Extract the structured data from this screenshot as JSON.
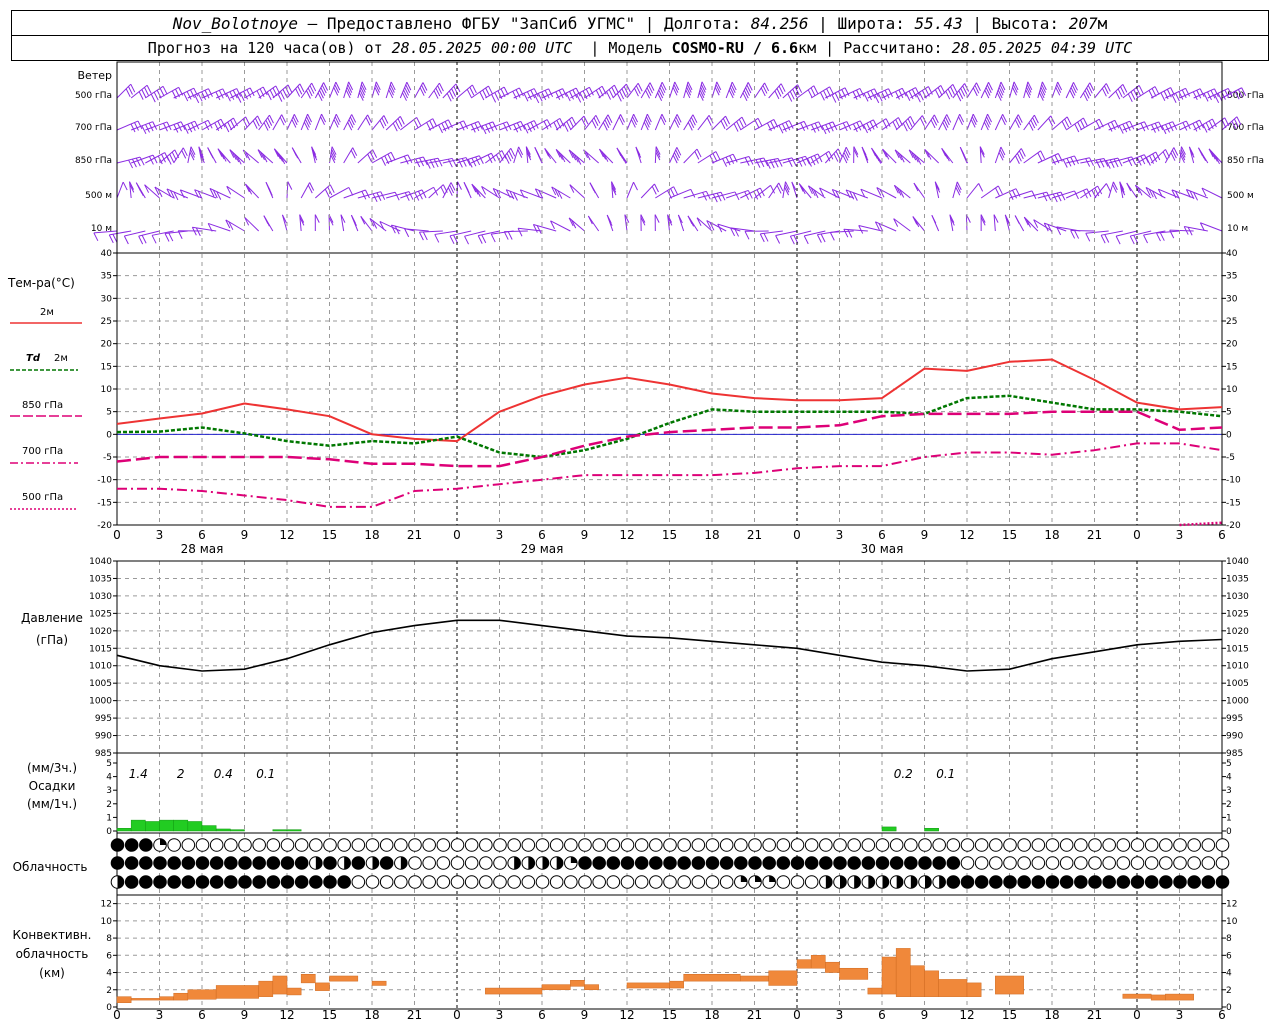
{
  "header": {
    "station": "Nov_Bolotnoye",
    "provider": "Предоставлено ФГБУ \"ЗапСиб УГМС\"",
    "lon_label": "Долгота:",
    "lon": "84.256",
    "lat_label": "Широта:",
    "lat": "55.43",
    "alt_label": "Высота:",
    "alt": "207",
    "alt_unit": "м",
    "forecast_label": "Прогноз на 120 часа(ов) от",
    "forecast_start": "28.05.2025 00:00 UTC",
    "model_label": "Модель",
    "model": "COSMO-RU / 6.6",
    "model_unit": "км",
    "computed_label": "Рассчитано:",
    "computed": "28.05.2025 04:39 UTC"
  },
  "colors": {
    "wind": "#8a2be2",
    "t2m": "#ee3333",
    "td2m": "#007700",
    "t850": "#dd0077",
    "pressure": "#000000",
    "precip": "#22cc22",
    "convective": "#f0883a",
    "zero_line": "#2222cc"
  },
  "wind_panel": {
    "title": "Ветер",
    "levels": [
      "500 гПа",
      "700 гПа",
      "850 гПа",
      "500 м",
      "10   м"
    ],
    "icon": "wind-barb-icon"
  },
  "x_axis": {
    "ticks": [
      "0",
      "3",
      "6",
      "9",
      "12",
      "15",
      "18",
      "21",
      "0",
      "3",
      "6",
      "9",
      "12",
      "15",
      "18",
      "21",
      "0",
      "3",
      "6",
      "9",
      "12",
      "15",
      "18",
      "21",
      "0",
      "3",
      "6"
    ],
    "days": [
      "28 мая",
      "29 мая",
      "30 мая"
    ],
    "convective_ticks": [
      "0",
      "3",
      "6",
      "9",
      "12",
      "15",
      "18",
      "21",
      "0",
      "3",
      "6",
      "9",
      "12",
      "15",
      "18",
      "21",
      "0",
      "3",
      "6",
      "9",
      "12",
      "15",
      "18",
      "21",
      "0",
      "3",
      "6"
    ]
  },
  "legend": {
    "title": "Тем-ра(°C)",
    "t2m": "2м",
    "td_symbol": "Td",
    "td_level": "2м",
    "t850": "850 гПа",
    "t700": "700 гПа",
    "t500": "500 гПа"
  },
  "labels": {
    "pressure": "Давление",
    "pressure_unit": "(гПа)",
    "precip_unit3": "(мм/3ч.)",
    "precip": "Осадки",
    "precip_unit1": "(мм/1ч.)",
    "cloud": "Облачность",
    "conv1": "Конвективн.",
    "conv2": "облачность",
    "conv3": "(км)"
  },
  "chart_data": [
    {
      "type": "line",
      "title": "",
      "ylabel": "Тем-ра(°C)",
      "ylim": [
        -20,
        40
      ],
      "yticks": [
        "40",
        "35",
        "30",
        "25",
        "20",
        "15",
        "10",
        "5",
        "0",
        "-5",
        "-10",
        "-15",
        "-20"
      ],
      "grid": true,
      "x_hours": [
        0,
        3,
        6,
        9,
        12,
        15,
        18,
        21,
        24,
        27,
        30,
        33,
        36,
        39,
        42,
        45,
        48,
        51,
        54,
        57,
        60,
        63,
        66,
        69,
        72,
        75,
        78
      ],
      "series": [
        {
          "name": "2м",
          "values": [
            2.3,
            3.5,
            4.6,
            6.8,
            5.5,
            4,
            0,
            -1,
            -1.5,
            5,
            8.5,
            11,
            12.5,
            11,
            9,
            8,
            7.5,
            7.5,
            8,
            14.5,
            14,
            16,
            16.5,
            12,
            7,
            5.5,
            6
          ]
        },
        {
          "name": "Td 2м",
          "values": [
            0.5,
            0.6,
            1.5,
            0.2,
            -1.5,
            -2.5,
            -1.5,
            -2,
            -0.5,
            -4,
            -5,
            -3.5,
            -1,
            2.5,
            5.5,
            5,
            5,
            5,
            5,
            4.5,
            8,
            8.5,
            7,
            5.5,
            5.5,
            5,
            4
          ]
        },
        {
          "name": "850 гПа",
          "values": [
            -6,
            -5,
            -5,
            -5,
            -5,
            -5.5,
            -6.5,
            -6.5,
            -7,
            -7,
            -5,
            -2.5,
            -0.5,
            0.5,
            1,
            1.5,
            1.5,
            2,
            4,
            4.5,
            4.5,
            4.5,
            5,
            5,
            5,
            1,
            1.5
          ]
        },
        {
          "name": "700 гПа",
          "values": [
            -12,
            -12,
            -12.5,
            -13.5,
            -14.5,
            -16,
            -16,
            -12.5,
            -12,
            -11,
            -10,
            -9,
            -9,
            -9,
            -9,
            -8.5,
            -7.5,
            -7,
            -7,
            -5,
            -4,
            -4,
            -4.5,
            -3.5,
            -2,
            -2,
            -3.5
          ]
        },
        {
          "name": "500 гПа",
          "values": [
            null,
            null,
            null,
            null,
            null,
            null,
            null,
            null,
            null,
            null,
            null,
            null,
            null,
            null,
            null,
            null,
            null,
            null,
            null,
            null,
            null,
            null,
            null,
            null,
            null,
            -20,
            -19.5
          ]
        }
      ]
    },
    {
      "type": "line",
      "ylabel": "Давление (гПа)",
      "ylim": [
        985,
        1040
      ],
      "yticks": [
        "1040",
        "1035",
        "1030",
        "1025",
        "1020",
        "1015",
        "1010",
        "1005",
        "1000",
        "995",
        "990",
        "985"
      ],
      "x_hours": [
        0,
        3,
        6,
        9,
        12,
        15,
        18,
        21,
        24,
        27,
        30,
        33,
        36,
        39,
        42,
        45,
        48,
        51,
        54,
        57,
        60,
        63,
        66,
        69,
        72,
        75,
        78
      ],
      "series": [
        {
          "name": "Давление",
          "values": [
            1013,
            1010,
            1008.5,
            1009,
            1012,
            1016,
            1019.5,
            1021.5,
            1023,
            1023,
            1021.5,
            1020,
            1018.5,
            1018,
            1017,
            1016,
            1015,
            1013,
            1011,
            1010,
            1008.5,
            1009,
            1012,
            1014,
            1016,
            1017,
            1017.5
          ]
        }
      ]
    },
    {
      "type": "bar",
      "ylabel": "Осадки (мм/1ч.)",
      "ylim": [
        0,
        5
      ],
      "yticks": [
        "5",
        "4",
        "3",
        "2",
        "1",
        "0"
      ],
      "annotations": [
        "1.4",
        "2",
        "0.4",
        "0.1",
        "0.2",
        "0.1"
      ],
      "x_hours": [
        0,
        1,
        2,
        3,
        4,
        5,
        6,
        7,
        8,
        9,
        10,
        11,
        12,
        13,
        14,
        15,
        16,
        17,
        18,
        19,
        20,
        21,
        22,
        23,
        24,
        25,
        26,
        27,
        28,
        29,
        30,
        31,
        32,
        33,
        34,
        35,
        36,
        37,
        38,
        39,
        40,
        41,
        42,
        43,
        44,
        45,
        46,
        47,
        48,
        49,
        50,
        51,
        52,
        53,
        54,
        55,
        56,
        57,
        58,
        59,
        60,
        61,
        62,
        63,
        64,
        65,
        66,
        67,
        68,
        69,
        70,
        71,
        72,
        73,
        74,
        75,
        76,
        77
      ],
      "values": [
        0.2,
        0.8,
        0.7,
        0.8,
        0.8,
        0.7,
        0.4,
        0.15,
        0.1,
        0,
        0,
        0.1,
        0.1,
        0,
        0,
        0,
        0,
        0,
        0,
        0,
        0,
        0,
        0,
        0,
        0,
        0,
        0,
        0,
        0,
        0,
        0,
        0,
        0,
        0,
        0,
        0,
        0,
        0,
        0,
        0,
        0,
        0,
        0,
        0,
        0,
        0,
        0,
        0,
        0,
        0,
        0,
        0,
        0,
        0,
        0.3,
        0,
        0,
        0.2,
        0,
        0,
        0,
        0,
        0,
        0,
        0,
        0,
        0,
        0,
        0,
        0,
        0,
        0,
        0,
        0,
        0,
        0,
        0,
        0
      ]
    },
    {
      "type": "table",
      "title": "Облачность",
      "rows": 3,
      "cells": [
        "bbbq0000000000000000000000000000000000000000000000000000000000000000000000000000",
        "bbbbbbbbbbbbbbhbhbhbh0000000hhhhqbbbbbbbbbbbbbbbbbbbbbbbbbbb00000000000000000000",
        "hbbbbbbbbbbbbbbbb000000000000000000000000000qqq000hhhhhhhhhbbbbbbbbbbbbbbbbbbbbb"
      ]
    },
    {
      "type": "bar",
      "ylabel": "Конвективн. облачность (км)",
      "ylim": [
        0,
        13
      ],
      "yticks": [
        "12",
        "10",
        "8",
        "6",
        "4",
        "2",
        "0"
      ],
      "bars": [
        {
          "x0": 0,
          "x1": 1,
          "lo": 0.5,
          "hi": 1.2
        },
        {
          "x0": 1,
          "x1": 3,
          "lo": 0.8,
          "hi": 1
        },
        {
          "x0": 3,
          "x1": 4,
          "lo": 0.8,
          "hi": 1.2
        },
        {
          "x0": 4,
          "x1": 5,
          "lo": 0.8,
          "hi": 1.6
        },
        {
          "x0": 5,
          "x1": 7,
          "lo": 0.9,
          "hi": 2
        },
        {
          "x0": 7,
          "x1": 10,
          "lo": 1,
          "hi": 2.5
        },
        {
          "x0": 10,
          "x1": 11,
          "lo": 1.2,
          "hi": 3
        },
        {
          "x0": 11,
          "x1": 12,
          "lo": 1.5,
          "hi": 3.6
        },
        {
          "x0": 12,
          "x1": 13,
          "lo": 1.4,
          "hi": 2.2
        },
        {
          "x0": 13,
          "x1": 14,
          "lo": 2.8,
          "hi": 3.8
        },
        {
          "x0": 14,
          "x1": 15,
          "lo": 1.9,
          "hi": 2.8
        },
        {
          "x0": 15,
          "x1": 17,
          "lo": 3,
          "hi": 3.6
        },
        {
          "x0": 18,
          "x1": 19,
          "lo": 2.5,
          "hi": 3
        },
        {
          "x0": 26,
          "x1": 30,
          "lo": 1.5,
          "hi": 2.2
        },
        {
          "x0": 30,
          "x1": 32,
          "lo": 2,
          "hi": 2.6
        },
        {
          "x0": 32,
          "x1": 33,
          "lo": 2.4,
          "hi": 3.1
        },
        {
          "x0": 33,
          "x1": 34,
          "lo": 2,
          "hi": 2.6
        },
        {
          "x0": 36,
          "x1": 39,
          "lo": 2.2,
          "hi": 2.8
        },
        {
          "x0": 39,
          "x1": 40,
          "lo": 2.2,
          "hi": 3
        },
        {
          "x0": 40,
          "x1": 44,
          "lo": 3,
          "hi": 3.8
        },
        {
          "x0": 44,
          "x1": 46,
          "lo": 3,
          "hi": 3.6
        },
        {
          "x0": 46,
          "x1": 48,
          "lo": 2.5,
          "hi": 4.2
        },
        {
          "x0": 48,
          "x1": 49,
          "lo": 4.5,
          "hi": 5.5
        },
        {
          "x0": 49,
          "x1": 50,
          "lo": 4.5,
          "hi": 6
        },
        {
          "x0": 50,
          "x1": 51,
          "lo": 4,
          "hi": 5.2
        },
        {
          "x0": 51,
          "x1": 53,
          "lo": 3.2,
          "hi": 4.5
        },
        {
          "x0": 53,
          "x1": 54,
          "lo": 1.5,
          "hi": 2.2
        },
        {
          "x0": 54,
          "x1": 55,
          "lo": 1.5,
          "hi": 5.8
        },
        {
          "x0": 55,
          "x1": 56,
          "lo": 1.2,
          "hi": 6.8
        },
        {
          "x0": 56,
          "x1": 57,
          "lo": 1.2,
          "hi": 4.8
        },
        {
          "x0": 57,
          "x1": 58,
          "lo": 1.2,
          "hi": 4.2
        },
        {
          "x0": 58,
          "x1": 60,
          "lo": 1.2,
          "hi": 3.2
        },
        {
          "x0": 60,
          "x1": 61,
          "lo": 1.2,
          "hi": 2.8
        },
        {
          "x0": 62,
          "x1": 64,
          "lo": 1.5,
          "hi": 3.6
        },
        {
          "x0": 71,
          "x1": 73,
          "lo": 1,
          "hi": 1.5
        },
        {
          "x0": 73,
          "x1": 74,
          "lo": 0.8,
          "hi": 1.4
        },
        {
          "x0": 74,
          "x1": 76,
          "lo": 0.8,
          "hi": 1.5
        }
      ]
    }
  ]
}
